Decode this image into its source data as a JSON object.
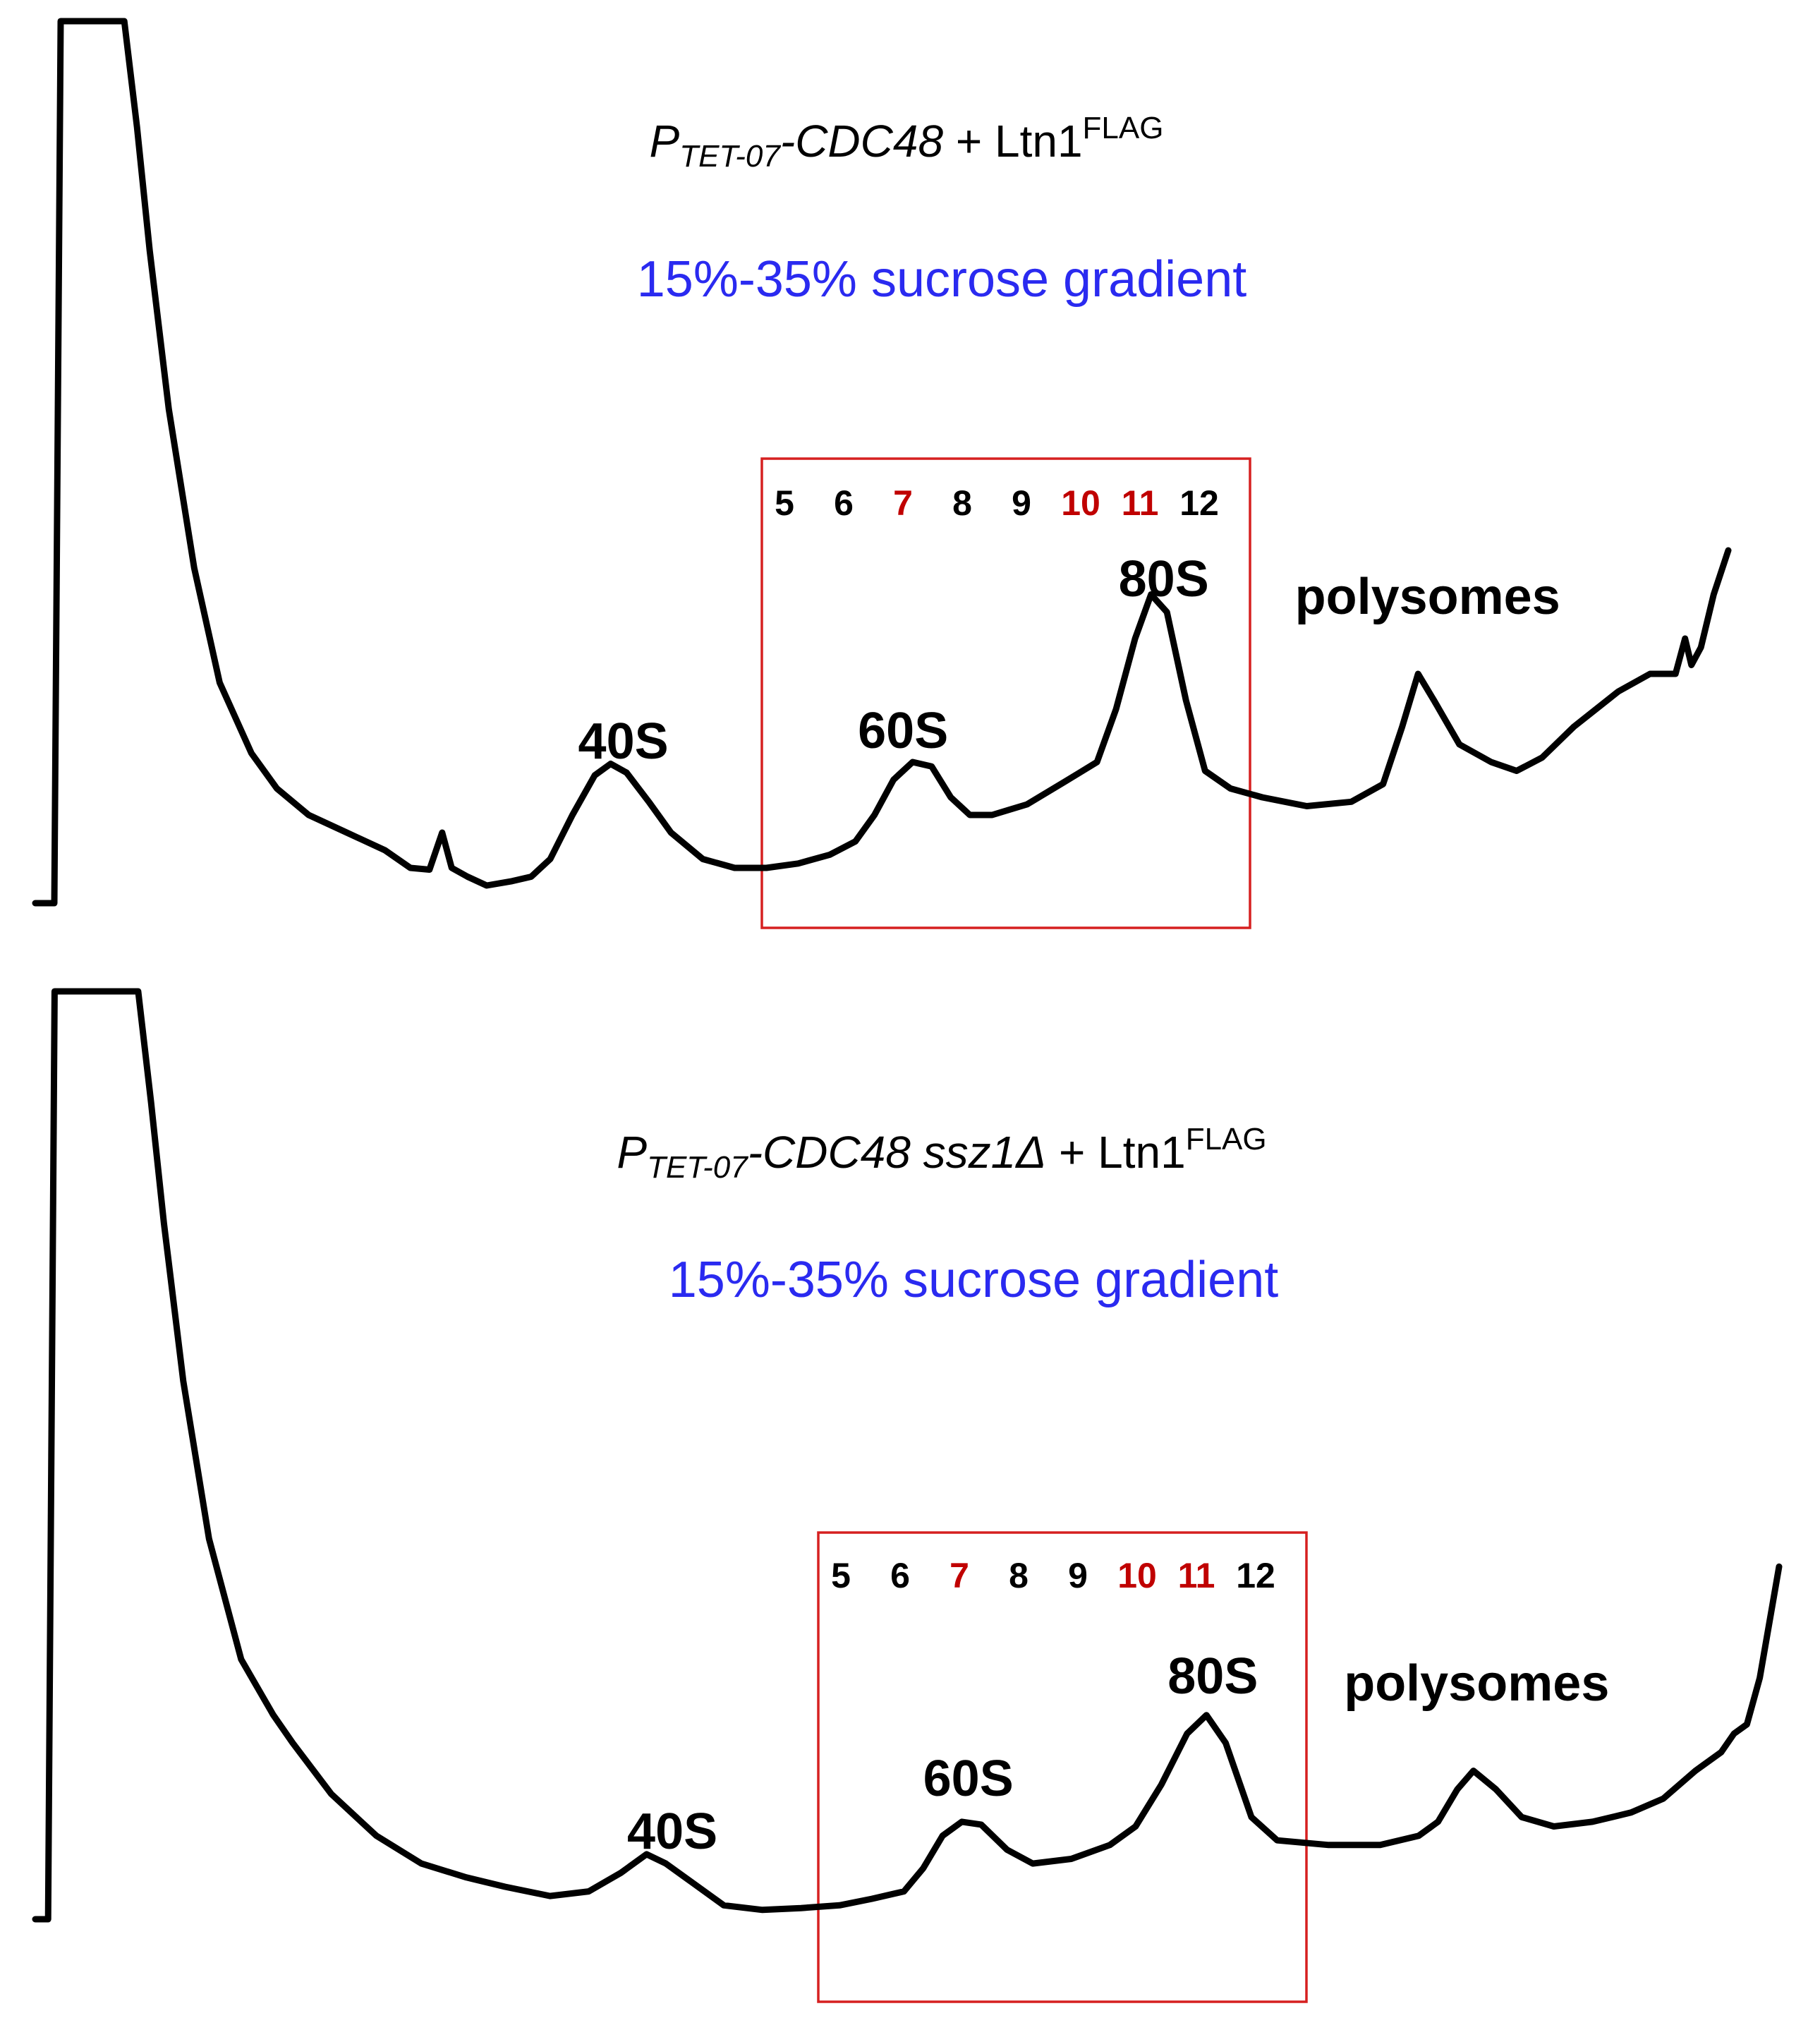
{
  "colors": {
    "trace": "#000000",
    "box": "#d62020",
    "highlight_fraction": "#c00000",
    "normal_fraction": "#000000",
    "gradient_text": "#2a2af0"
  },
  "chart_data": [
    {
      "type": "line",
      "title": {
        "p": "P",
        "sub": "TET-07",
        "construct": "-CDC48",
        "deletion": "",
        "plus": " + Ltn1",
        "sup": "FLAG"
      },
      "subtitle": "15%-35% sucrose gradient",
      "xlabel": "",
      "ylabel": "",
      "grid": false,
      "fractions": [
        {
          "label": "5",
          "highlight": false
        },
        {
          "label": "6",
          "highlight": false
        },
        {
          "label": "7",
          "highlight": true
        },
        {
          "label": "8",
          "highlight": false
        },
        {
          "label": "9",
          "highlight": false
        },
        {
          "label": "10",
          "highlight": true
        },
        {
          "label": "11",
          "highlight": true
        },
        {
          "label": "12",
          "highlight": false
        }
      ],
      "fraction_range": [
        4.55,
        12.75
      ],
      "peaks": [
        {
          "label": "40S",
          "x": 1.55
        },
        {
          "label": "60S",
          "x": 5.95
        },
        {
          "label": "80S",
          "x": 10.05
        },
        {
          "label": "polysomes",
          "x": 14.2
        }
      ],
      "xlim": [
        -7.7,
        18.93
      ],
      "ylim": [
        0,
        1
      ],
      "series": [
        {
          "points": [
            [
              -7.7,
              0.0
            ],
            [
              -7.4,
              0.0
            ],
            [
              -7.35,
              0.5
            ],
            [
              -7.3,
              1.0
            ],
            [
              -6.3,
              1.0
            ],
            [
              -6.1,
              0.88
            ],
            [
              -5.9,
              0.74
            ],
            [
              -5.6,
              0.56
            ],
            [
              -5.2,
              0.38
            ],
            [
              -4.8,
              0.25
            ],
            [
              -4.3,
              0.17
            ],
            [
              -3.9,
              0.13
            ],
            [
              -3.4,
              0.1
            ],
            [
              -2.8,
              0.08
            ],
            [
              -2.2,
              0.06
            ],
            [
              -1.8,
              0.04
            ],
            [
              -1.5,
              0.038
            ],
            [
              -1.3,
              0.08
            ],
            [
              -1.15,
              0.04
            ],
            [
              -0.9,
              0.03
            ],
            [
              -0.6,
              0.02
            ],
            [
              -0.2,
              0.025
            ],
            [
              0.1,
              0.03
            ],
            [
              0.4,
              0.05
            ],
            [
              0.75,
              0.1
            ],
            [
              1.1,
              0.145
            ],
            [
              1.35,
              0.158
            ],
            [
              1.6,
              0.148
            ],
            [
              1.95,
              0.115
            ],
            [
              2.3,
              0.08
            ],
            [
              2.8,
              0.05
            ],
            [
              3.3,
              0.04
            ],
            [
              3.8,
              0.04
            ],
            [
              4.3,
              0.045
            ],
            [
              4.8,
              0.055
            ],
            [
              5.2,
              0.07
            ],
            [
              5.5,
              0.1
            ],
            [
              5.8,
              0.14
            ],
            [
              6.1,
              0.16
            ],
            [
              6.4,
              0.155
            ],
            [
              6.7,
              0.12
            ],
            [
              7.0,
              0.1
            ],
            [
              7.35,
              0.1
            ],
            [
              7.9,
              0.112
            ],
            [
              8.5,
              0.138
            ],
            [
              9.0,
              0.16
            ],
            [
              9.3,
              0.22
            ],
            [
              9.6,
              0.3
            ],
            [
              9.85,
              0.35
            ],
            [
              10.1,
              0.33
            ],
            [
              10.4,
              0.23
            ],
            [
              10.7,
              0.15
            ],
            [
              11.1,
              0.13
            ],
            [
              11.6,
              0.12
            ],
            [
              12.3,
              0.11
            ],
            [
              13.0,
              0.115
            ],
            [
              13.5,
              0.135
            ],
            [
              13.8,
              0.2
            ],
            [
              14.05,
              0.26
            ],
            [
              14.3,
              0.23
            ],
            [
              14.7,
              0.18
            ],
            [
              15.2,
              0.16
            ],
            [
              15.6,
              0.15
            ],
            [
              16.0,
              0.165
            ],
            [
              16.5,
              0.2
            ],
            [
              17.2,
              0.24
            ],
            [
              17.7,
              0.26
            ],
            [
              18.1,
              0.26
            ],
            [
              18.25,
              0.3
            ],
            [
              18.35,
              0.27
            ],
            [
              18.5,
              0.29
            ],
            [
              18.7,
              0.35
            ],
            [
              18.93,
              0.4
            ]
          ]
        }
      ]
    },
    {
      "type": "line",
      "title": {
        "p": "P",
        "sub": "TET-07",
        "construct": "-CDC48 ssz1",
        "deletion": "Δ",
        "plus": " + Ltn1",
        "sup": "FLAG"
      },
      "subtitle": "15%-35% sucrose gradient",
      "xlabel": "",
      "ylabel": "",
      "grid": false,
      "fractions": [
        {
          "label": "5",
          "highlight": false
        },
        {
          "label": "6",
          "highlight": false
        },
        {
          "label": "7",
          "highlight": true
        },
        {
          "label": "8",
          "highlight": false
        },
        {
          "label": "9",
          "highlight": false
        },
        {
          "label": "10",
          "highlight": true
        },
        {
          "label": "11",
          "highlight": true
        },
        {
          "label": "12",
          "highlight": false
        }
      ],
      "fraction_range": [
        4.55,
        12.75
      ],
      "peaks": [
        {
          "label": "40S",
          "x": 1.6
        },
        {
          "label": "60S",
          "x": 6.2
        },
        {
          "label": "80S",
          "x": 10.0
        },
        {
          "label": "polysomes",
          "x": 14.1
        }
      ],
      "xlim": [
        -8.3,
        18.8
      ],
      "ylim": [
        0,
        1
      ],
      "series": [
        {
          "points": [
            [
              -8.3,
              0.0
            ],
            [
              -8.1,
              0.0
            ],
            [
              -8.05,
              0.5
            ],
            [
              -8.0,
              1.0
            ],
            [
              -6.7,
              1.0
            ],
            [
              -6.5,
              0.88
            ],
            [
              -6.3,
              0.75
            ],
            [
              -6.0,
              0.58
            ],
            [
              -5.6,
              0.41
            ],
            [
              -5.1,
              0.28
            ],
            [
              -4.6,
              0.22
            ],
            [
              -4.3,
              0.19
            ],
            [
              -3.7,
              0.135
            ],
            [
              -3.0,
              0.09
            ],
            [
              -2.3,
              0.06
            ],
            [
              -1.6,
              0.045
            ],
            [
              -1.0,
              0.035
            ],
            [
              -0.3,
              0.025
            ],
            [
              0.3,
              0.03
            ],
            [
              0.8,
              0.05
            ],
            [
              1.2,
              0.07
            ],
            [
              1.5,
              0.06
            ],
            [
              1.9,
              0.04
            ],
            [
              2.4,
              0.015
            ],
            [
              3.0,
              0.01
            ],
            [
              3.6,
              0.012
            ],
            [
              4.2,
              0.015
            ],
            [
              4.7,
              0.022
            ],
            [
              5.2,
              0.03
            ],
            [
              5.5,
              0.055
            ],
            [
              5.8,
              0.09
            ],
            [
              6.1,
              0.105
            ],
            [
              6.4,
              0.102
            ],
            [
              6.8,
              0.075
            ],
            [
              7.2,
              0.06
            ],
            [
              7.8,
              0.065
            ],
            [
              8.4,
              0.08
            ],
            [
              8.8,
              0.1
            ],
            [
              9.2,
              0.145
            ],
            [
              9.6,
              0.2
            ],
            [
              9.9,
              0.22
            ],
            [
              10.2,
              0.19
            ],
            [
              10.6,
              0.11
            ],
            [
              11.0,
              0.085
            ],
            [
              11.8,
              0.08
            ],
            [
              12.6,
              0.08
            ],
            [
              13.2,
              0.09
            ],
            [
              13.5,
              0.105
            ],
            [
              13.8,
              0.14
            ],
            [
              14.05,
              0.16
            ],
            [
              14.4,
              0.14
            ],
            [
              14.8,
              0.11
            ],
            [
              15.3,
              0.1
            ],
            [
              15.9,
              0.105
            ],
            [
              16.5,
              0.115
            ],
            [
              17.0,
              0.13
            ],
            [
              17.5,
              0.16
            ],
            [
              17.9,
              0.18
            ],
            [
              18.1,
              0.2
            ],
            [
              18.3,
              0.21
            ],
            [
              18.5,
              0.26
            ],
            [
              18.65,
              0.32
            ],
            [
              18.8,
              0.38
            ]
          ]
        }
      ]
    }
  ]
}
